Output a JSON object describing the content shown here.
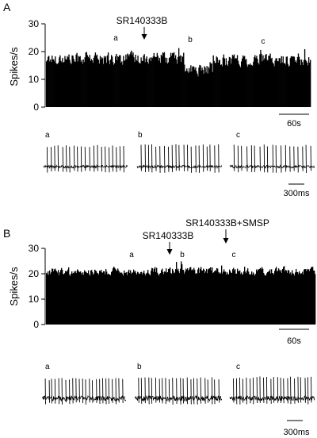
{
  "figure": {
    "panel_a_label": "A",
    "panel_b_label": "B"
  },
  "chart_data": [
    {
      "type": "bar",
      "panel": "A",
      "ylabel": "Spikes/s",
      "yticks": [
        "0",
        "10",
        "20",
        "30"
      ],
      "ylim": [
        0,
        30
      ],
      "n_bins": 330,
      "segments": [
        {
          "from": 0.0,
          "to": 0.38,
          "level": 17.5
        },
        {
          "from": 0.38,
          "to": 0.52,
          "level": 17.5
        },
        {
          "from": 0.52,
          "to": 0.63,
          "level": 13.5
        },
        {
          "from": 0.63,
          "to": 1.0,
          "level": 17.0
        }
      ],
      "noise": 2.0,
      "scale_bar_label": "60s",
      "annotations": [
        {
          "text": "SR140333B",
          "at": 0.42,
          "arrow": true
        },
        {
          "text": "a",
          "at": 0.3,
          "arrow": false
        },
        {
          "text": "b",
          "at": 0.58,
          "arrow": false
        },
        {
          "text": "c",
          "at": 0.84,
          "arrow": false
        }
      ]
    },
    {
      "type": "bar",
      "panel": "B",
      "ylabel": "Spikes/s",
      "yticks": [
        "0",
        "10",
        "20",
        "30"
      ],
      "ylim": [
        0,
        30
      ],
      "n_bins": 340,
      "segments": [
        {
          "from": 0.0,
          "to": 1.0,
          "level": 21.0
        }
      ],
      "noise": 1.4,
      "scale_bar_label": "60s",
      "annotations": [
        {
          "text": "SR140333B",
          "at": 0.456,
          "arrow": true
        },
        {
          "text": "SR140333B+SMSP",
          "at": 0.66,
          "arrow": true
        },
        {
          "text": "a",
          "at": 0.32,
          "arrow": false
        },
        {
          "text": "b",
          "at": 0.5,
          "arrow": false
        },
        {
          "text": "c",
          "at": 0.69,
          "arrow": false
        }
      ]
    }
  ],
  "traces": {
    "panel_a": {
      "scale_bar_label": "300ms",
      "items": [
        {
          "label": "a",
          "spikes": 21,
          "height": 0.82,
          "noise": 0.22
        },
        {
          "label": "b",
          "spikes": 21,
          "height": 0.85,
          "noise": 0.22
        },
        {
          "label": "c",
          "spikes": 19,
          "height": 0.84,
          "noise": 0.22
        }
      ]
    },
    "panel_b": {
      "scale_bar_label": "300ms",
      "items": [
        {
          "label": "a",
          "spikes": 24,
          "height": 0.72,
          "noise": 0.4
        },
        {
          "label": "b",
          "spikes": 24,
          "height": 0.75,
          "noise": 0.42
        },
        {
          "label": "c",
          "spikes": 24,
          "height": 0.78,
          "noise": 0.38
        }
      ]
    }
  }
}
